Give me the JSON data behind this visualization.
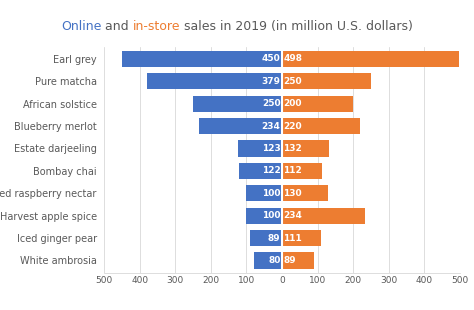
{
  "title_parts": [
    {
      "text": "Online",
      "color": "#4472C4"
    },
    {
      "text": " and ",
      "color": "#595959"
    },
    {
      "text": "in-store",
      "color": "#ED7D31"
    },
    {
      "text": " sales in 2019 (in million U.S. dollars)",
      "color": "#595959"
    }
  ],
  "categories": [
    "Earl grey",
    "Pure matcha",
    "African solstice",
    "Blueberry merlot",
    "Estate darjeeling",
    "Bombay chai",
    "Iced raspberry nectar",
    "Harvest apple spice",
    "Iced ginger pear",
    "White ambrosia"
  ],
  "online_values": [
    450,
    379,
    250,
    234,
    123,
    122,
    100,
    100,
    89,
    80
  ],
  "instore_values": [
    498,
    250,
    200,
    220,
    132,
    112,
    130,
    234,
    111,
    89
  ],
  "online_color": "#4472C4",
  "instore_color": "#ED7D31",
  "xlim": [
    -500,
    500
  ],
  "xticks": [
    -500,
    -400,
    -300,
    -200,
    -100,
    0,
    100,
    200,
    300,
    400,
    500
  ],
  "xtick_labels": [
    "500",
    "400",
    "300",
    "200",
    "100",
    "0",
    "100",
    "200",
    "300",
    "400",
    "500"
  ],
  "bar_height": 0.72,
  "label_fontsize": 6.5,
  "tick_fontsize": 6.5,
  "title_fontsize": 9.0,
  "category_fontsize": 7.0,
  "bg_color": "#FFFFFF",
  "grid_color": "#D0D0D0"
}
